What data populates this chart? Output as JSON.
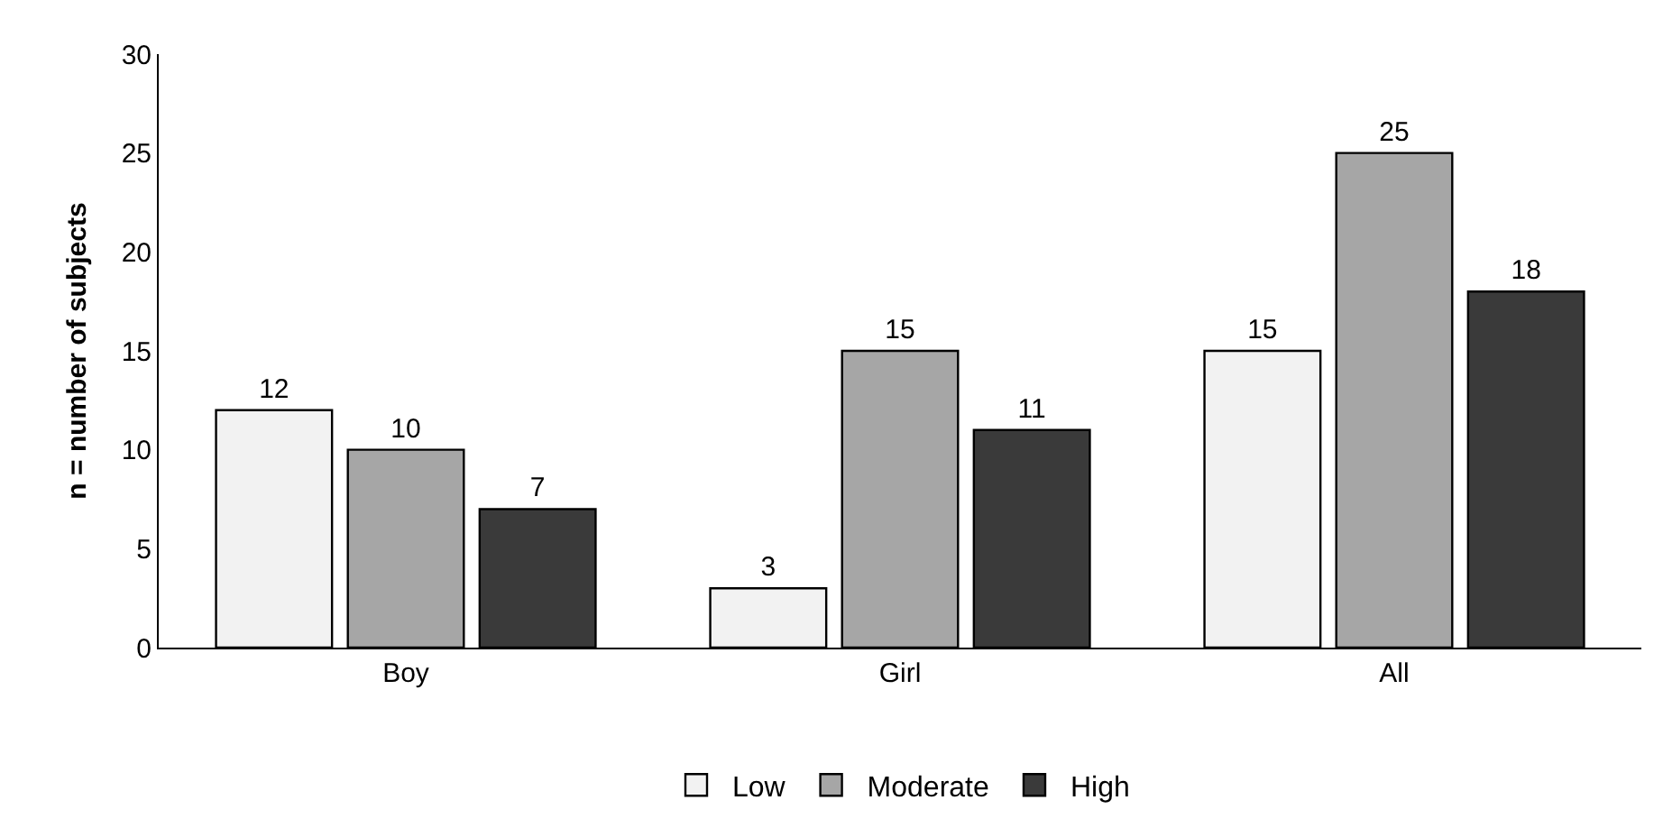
{
  "chart_data": {
    "type": "bar",
    "ylabel": "n = number of subjects",
    "categories": [
      "Boy",
      "Girl",
      "All"
    ],
    "series": [
      {
        "name": "Low",
        "color": "#f2f2f2",
        "values": [
          12,
          3,
          15
        ]
      },
      {
        "name": "Moderate",
        "color": "#a6a6a6",
        "values": [
          10,
          15,
          25
        ]
      },
      {
        "name": "High",
        "color": "#3a3a3a",
        "values": [
          7,
          11,
          18
        ]
      }
    ],
    "ylim": [
      0,
      30
    ],
    "yticks": [
      0,
      5,
      10,
      15,
      20,
      25,
      30
    ],
    "legend": "bottom",
    "data_labels": true
  }
}
